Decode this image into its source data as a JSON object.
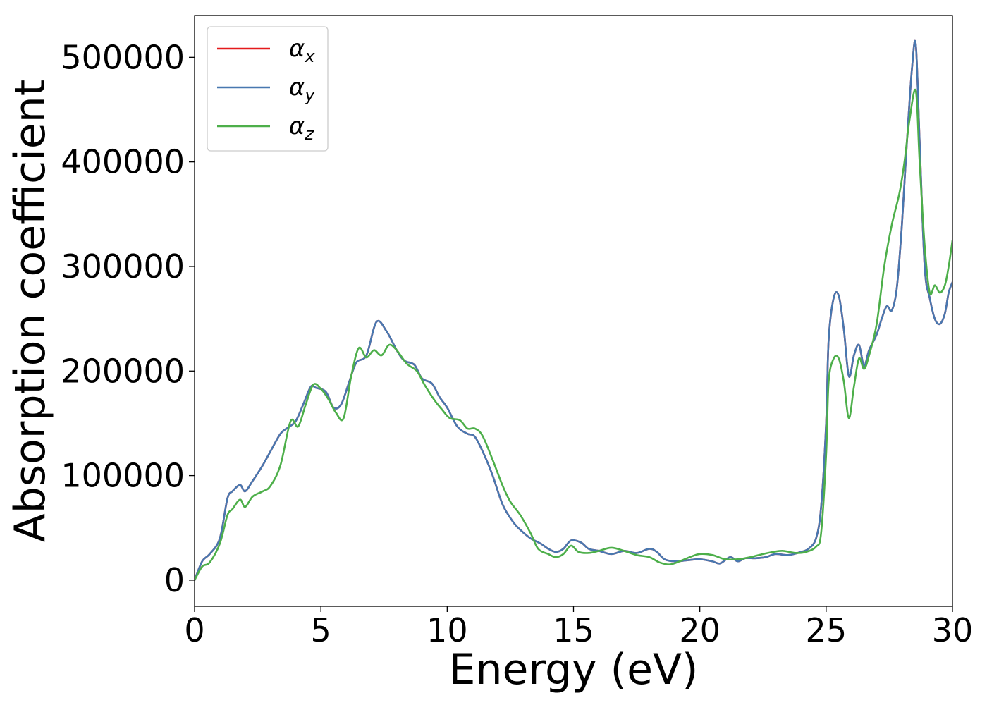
{
  "chart_data": {
    "type": "line",
    "title": "",
    "xlabel": "Energy (eV)",
    "ylabel": "Absorption coefficient",
    "xlim": [
      0,
      30
    ],
    "ylim": [
      -25000,
      540000
    ],
    "xticks": [
      0,
      5,
      10,
      15,
      20,
      25,
      30
    ],
    "yticks": [
      0,
      100000,
      200000,
      300000,
      400000,
      500000
    ],
    "grid": false,
    "legend_position": "top-left",
    "series": [
      {
        "name": "α_x",
        "legend_symbol": "α",
        "legend_subscript": "x",
        "color": "#e41a1c",
        "x": [
          0,
          0.3,
          0.6,
          1.0,
          1.3,
          1.5,
          1.8,
          2.0,
          2.3,
          2.7,
          3.0,
          3.4,
          3.7,
          4.0,
          4.3,
          4.6,
          4.8,
          5.2,
          5.5,
          5.8,
          6.1,
          6.4,
          6.8,
          7.2,
          7.6,
          8.0,
          8.3,
          8.7,
          9.0,
          9.4,
          9.7,
          10.0,
          10.4,
          10.8,
          11.1,
          11.5,
          11.8,
          12.2,
          12.6,
          12.9,
          13.3,
          13.7,
          14.0,
          14.3,
          14.6,
          14.9,
          15.3,
          15.6,
          16.0,
          16.5,
          17.0,
          17.5,
          18.0,
          18.3,
          18.6,
          19.0,
          19.5,
          20.0,
          20.5,
          20.8,
          21.2,
          21.5,
          21.8,
          22.2,
          22.6,
          23.0,
          23.5,
          24.0,
          24.3,
          24.6,
          24.8,
          25.0,
          25.1,
          25.3,
          25.5,
          25.7,
          25.9,
          26.1,
          26.3,
          26.5,
          26.7,
          27.0,
          27.2,
          27.4,
          27.6,
          27.8,
          28.0,
          28.2,
          28.4,
          28.55,
          28.7,
          28.9,
          29.1,
          29.3,
          29.5,
          29.7,
          29.85,
          30.0
        ],
        "values": [
          0,
          18000,
          25000,
          40000,
          78000,
          85000,
          91000,
          85000,
          95000,
          110000,
          123000,
          140000,
          146000,
          152000,
          168000,
          185000,
          184000,
          180000,
          165000,
          168000,
          188000,
          208000,
          215000,
          247000,
          238000,
          220000,
          210000,
          206000,
          193000,
          188000,
          175000,
          165000,
          147000,
          140000,
          137000,
          118000,
          100000,
          72000,
          56000,
          48000,
          40000,
          35000,
          30000,
          27000,
          30000,
          38000,
          36000,
          30000,
          28000,
          25000,
          28000,
          26000,
          30000,
          27000,
          20000,
          18000,
          19000,
          20000,
          18000,
          16000,
          22000,
          18000,
          21000,
          21000,
          22000,
          25000,
          24000,
          27000,
          30000,
          40000,
          70000,
          150000,
          230000,
          270000,
          272000,
          240000,
          195000,
          215000,
          225000,
          205000,
          220000,
          235000,
          250000,
          262000,
          258000,
          280000,
          340000,
          420000,
          490000,
          512000,
          420000,
          300000,
          270000,
          250000,
          245000,
          255000,
          275000,
          285000
        ]
      },
      {
        "name": "α_y",
        "legend_symbol": "α",
        "legend_subscript": "y",
        "color": "#4878b0",
        "x": [
          0,
          0.3,
          0.6,
          1.0,
          1.3,
          1.5,
          1.8,
          2.0,
          2.3,
          2.7,
          3.0,
          3.4,
          3.7,
          4.0,
          4.3,
          4.6,
          4.8,
          5.2,
          5.5,
          5.8,
          6.1,
          6.4,
          6.8,
          7.2,
          7.6,
          8.0,
          8.3,
          8.7,
          9.0,
          9.4,
          9.7,
          10.0,
          10.4,
          10.8,
          11.1,
          11.5,
          11.8,
          12.2,
          12.6,
          12.9,
          13.3,
          13.7,
          14.0,
          14.3,
          14.6,
          14.9,
          15.3,
          15.6,
          16.0,
          16.5,
          17.0,
          17.5,
          18.0,
          18.3,
          18.6,
          19.0,
          19.5,
          20.0,
          20.5,
          20.8,
          21.2,
          21.5,
          21.8,
          22.2,
          22.6,
          23.0,
          23.5,
          24.0,
          24.3,
          24.6,
          24.8,
          25.0,
          25.1,
          25.3,
          25.5,
          25.7,
          25.9,
          26.1,
          26.3,
          26.5,
          26.7,
          27.0,
          27.2,
          27.4,
          27.6,
          27.8,
          28.0,
          28.2,
          28.4,
          28.55,
          28.7,
          28.9,
          29.1,
          29.3,
          29.5,
          29.7,
          29.85,
          30.0
        ],
        "values": [
          0,
          18000,
          25000,
          40000,
          78000,
          85000,
          91000,
          85000,
          95000,
          110000,
          123000,
          140000,
          146000,
          152000,
          168000,
          185000,
          184000,
          180000,
          165000,
          168000,
          188000,
          208000,
          215000,
          247000,
          238000,
          220000,
          210000,
          206000,
          193000,
          188000,
          175000,
          165000,
          147000,
          140000,
          137000,
          118000,
          100000,
          72000,
          56000,
          48000,
          40000,
          35000,
          30000,
          27000,
          30000,
          38000,
          36000,
          30000,
          28000,
          25000,
          28000,
          26000,
          30000,
          27000,
          20000,
          18000,
          19000,
          20000,
          18000,
          16000,
          22000,
          18000,
          21000,
          21000,
          22000,
          25000,
          24000,
          27000,
          30000,
          40000,
          70000,
          150000,
          230000,
          270000,
          272000,
          240000,
          195000,
          215000,
          225000,
          205000,
          220000,
          235000,
          250000,
          262000,
          258000,
          280000,
          340000,
          420000,
          490000,
          512000,
          420000,
          300000,
          270000,
          250000,
          245000,
          255000,
          275000,
          285000
        ]
      },
      {
        "name": "α_z",
        "legend_symbol": "α",
        "legend_subscript": "z",
        "color": "#4daf4a",
        "x": [
          0,
          0.3,
          0.6,
          1.0,
          1.3,
          1.5,
          1.8,
          2.0,
          2.3,
          2.7,
          3.0,
          3.4,
          3.8,
          4.1,
          4.4,
          4.7,
          5.0,
          5.3,
          5.6,
          5.9,
          6.2,
          6.5,
          6.8,
          7.1,
          7.4,
          7.7,
          8.0,
          8.4,
          8.8,
          9.1,
          9.5,
          9.8,
          10.1,
          10.5,
          10.8,
          11.1,
          11.4,
          11.8,
          12.2,
          12.5,
          12.9,
          13.3,
          13.6,
          14.0,
          14.3,
          14.6,
          14.9,
          15.2,
          15.6,
          16.0,
          16.5,
          17.0,
          17.5,
          18.0,
          18.4,
          18.8,
          19.2,
          19.6,
          20.0,
          20.5,
          21.0,
          21.5,
          22.0,
          22.5,
          22.9,
          23.3,
          23.8,
          24.2,
          24.6,
          24.8,
          25.0,
          25.1,
          25.3,
          25.5,
          25.7,
          25.9,
          26.1,
          26.3,
          26.5,
          26.7,
          27.0,
          27.3,
          27.6,
          27.9,
          28.1,
          28.3,
          28.55,
          28.7,
          28.9,
          29.1,
          29.3,
          29.5,
          29.7,
          29.85,
          30.0
        ],
        "values": [
          0,
          13000,
          17000,
          35000,
          62000,
          68000,
          77000,
          70000,
          80000,
          85000,
          90000,
          110000,
          152000,
          147000,
          168000,
          187000,
          183000,
          173000,
          160000,
          155000,
          195000,
          222000,
          213000,
          220000,
          215000,
          225000,
          220000,
          207000,
          200000,
          187000,
          172000,
          163000,
          155000,
          153000,
          145000,
          145000,
          138000,
          115000,
          90000,
          75000,
          62000,
          45000,
          30000,
          25000,
          22000,
          25000,
          33000,
          27000,
          26000,
          28000,
          31000,
          28000,
          24000,
          22000,
          17000,
          15000,
          18000,
          22000,
          25000,
          24000,
          20000,
          20000,
          22000,
          25000,
          27000,
          28000,
          26000,
          27000,
          32000,
          45000,
          120000,
          190000,
          212000,
          212000,
          190000,
          155000,
          185000,
          212000,
          202000,
          215000,
          245000,
          300000,
          340000,
          370000,
          400000,
          440000,
          468000,
          400000,
          320000,
          275000,
          282000,
          275000,
          282000,
          300000,
          325000
        ]
      }
    ]
  }
}
